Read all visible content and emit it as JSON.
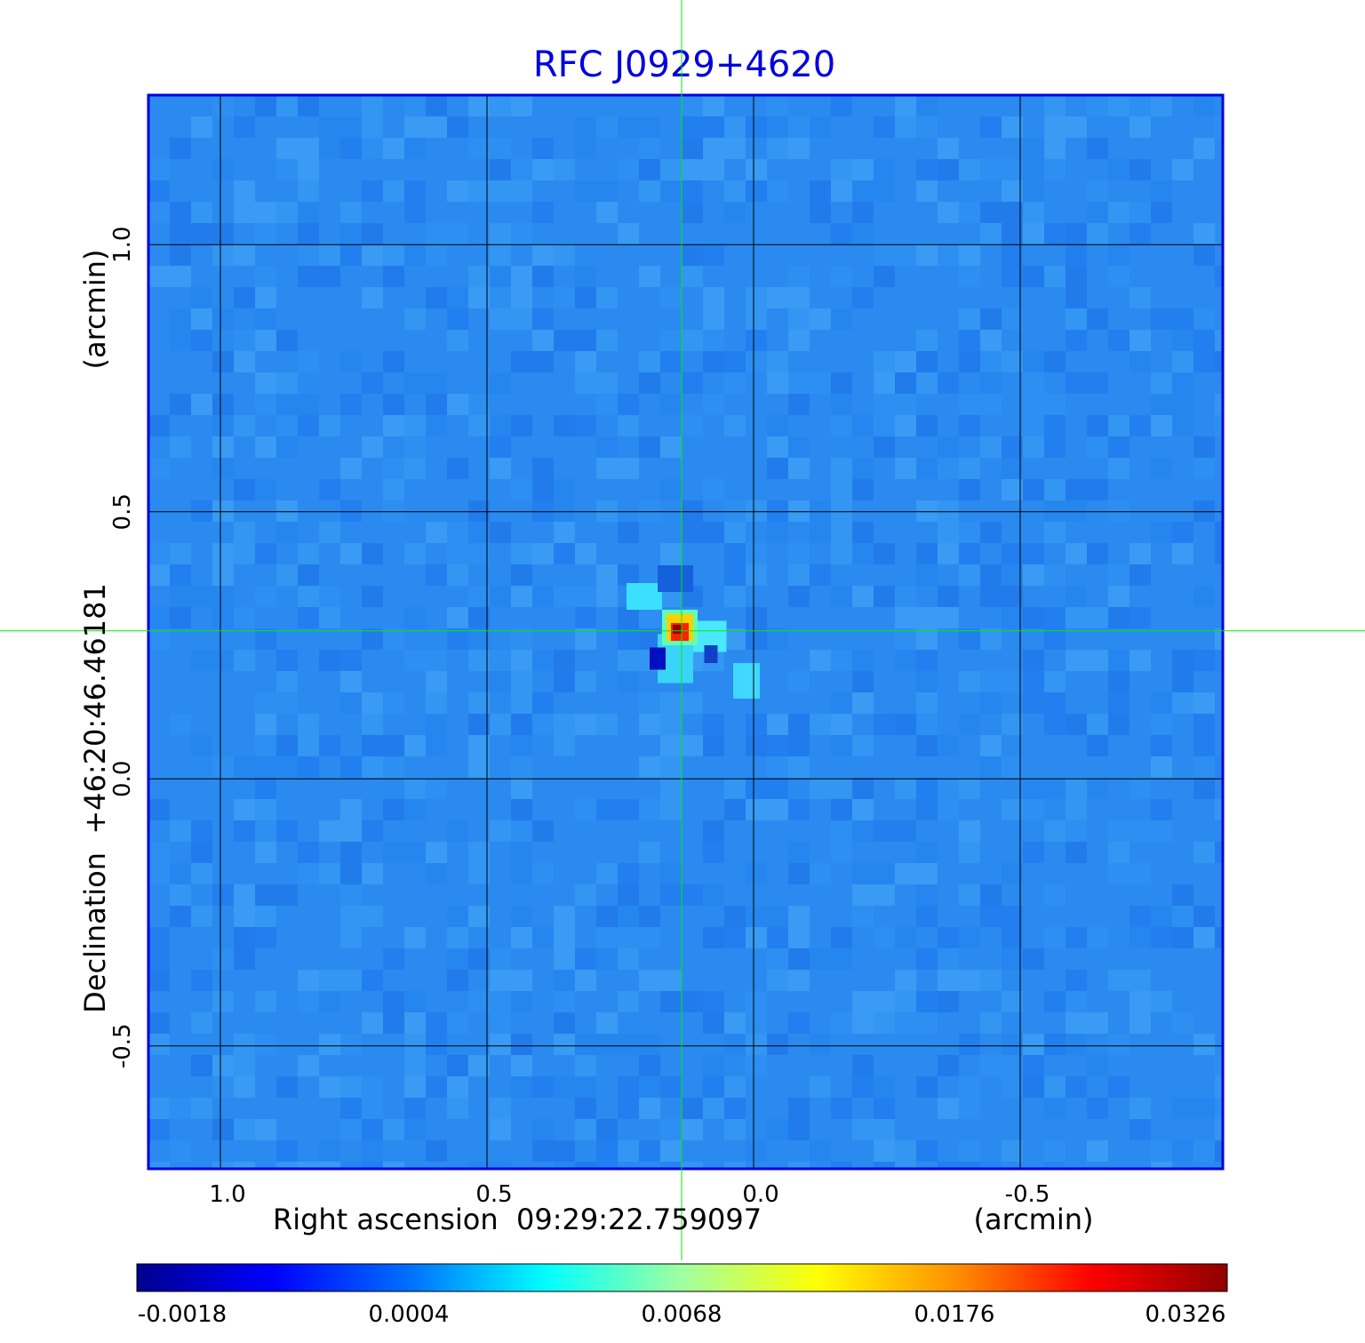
{
  "chart_data": {
    "type": "heatmap",
    "title": "RFC J0929+4620",
    "xlabel": "Right ascension  09:29:22.759097",
    "xunit": "(arcmin)",
    "ylabel": "Declination  +46:20:46.46181",
    "yunit": "(arcmin)",
    "x_ticks": [
      1.0,
      0.5,
      0.0,
      -0.5
    ],
    "x_tick_labels": [
      "1.0",
      "0.5",
      "0.0",
      "-0.5"
    ],
    "y_ticks": [
      1.0,
      0.5,
      0.0,
      -0.5
    ],
    "y_tick_labels": [
      "1.0",
      "0.5",
      "0.0",
      "-0.5"
    ],
    "xlim": [
      1.135,
      -0.88
    ],
    "ylim": [
      -0.73,
      1.28
    ],
    "grid": true,
    "crosshair": {
      "x": 0.135,
      "y": 0.277
    },
    "peak": {
      "x": 0.13,
      "y": 0.275,
      "value": 0.0326
    },
    "colorbar": {
      "tick_labels": [
        "-0.0018",
        "0.0004",
        "0.0068",
        "0.0176",
        "0.0326"
      ],
      "colormap": "jet"
    },
    "colors": {
      "title": "#0000dd",
      "frame": "#0000dd",
      "grid": "#000000",
      "crosshair": "#00ee00",
      "background_noise": "#2a8af0"
    }
  }
}
